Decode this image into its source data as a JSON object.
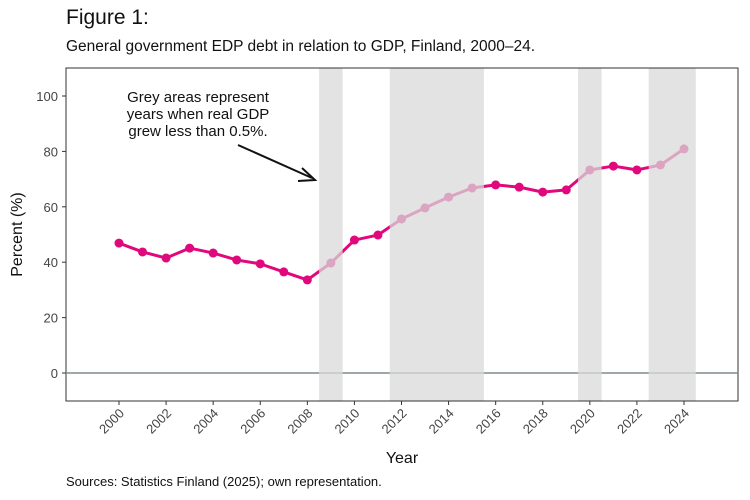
{
  "figure_label": "Figure 1:",
  "sources": "Sources: Statistics Finland (2025); own representation.",
  "chart_data": {
    "type": "line",
    "title": "General government EDP debt in relation to GDP, Finland, 2000–24.",
    "xlabel": "Year",
    "ylabel": "Percent (%)",
    "ylim": [
      -10,
      110
    ],
    "xlim": [
      1999,
      2025
    ],
    "yticks": [
      0,
      20,
      40,
      60,
      80,
      100
    ],
    "xticks": [
      2000,
      2002,
      2004,
      2006,
      2008,
      2010,
      2012,
      2014,
      2016,
      2018,
      2020,
      2022,
      2024
    ],
    "grid": false,
    "x": [
      2000,
      2001,
      2002,
      2003,
      2004,
      2005,
      2006,
      2007,
      2008,
      2009,
      2010,
      2011,
      2012,
      2013,
      2014,
      2015,
      2016,
      2017,
      2018,
      2019,
      2020,
      2021,
      2022,
      2023,
      2024
    ],
    "values": [
      46.9,
      43.7,
      41.5,
      45.1,
      43.3,
      40.8,
      39.4,
      36.5,
      33.6,
      39.7,
      48.0,
      49.8,
      55.6,
      59.6,
      63.5,
      66.8,
      67.9,
      67.1,
      65.3,
      66.1,
      73.3,
      74.7,
      73.3,
      75.1,
      80.9
    ],
    "shaded_periods": [
      [
        2008.5,
        2009.5
      ],
      [
        2011.5,
        2015.5
      ],
      [
        2019.5,
        2020.5
      ],
      [
        2022.5,
        2024.5
      ]
    ],
    "annotation": [
      "Grey areas represent",
      "years when real GDP",
      "grew less than 0.5%."
    ],
    "colors": {
      "line": "#e0087c",
      "shade": "#d9d9d9",
      "zero_line": "#7f8c8d"
    }
  }
}
